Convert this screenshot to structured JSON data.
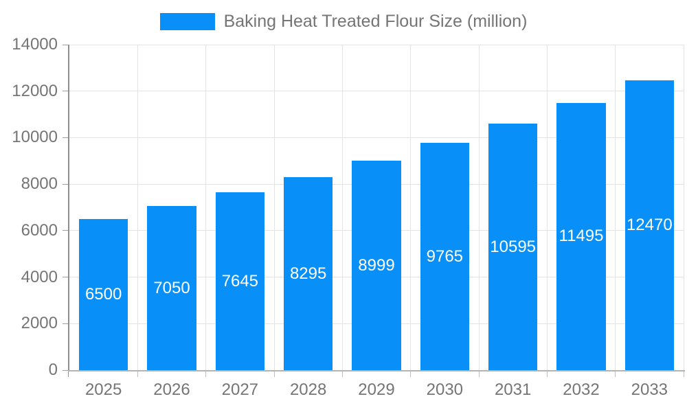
{
  "legend": {
    "items": [
      {
        "label": "Baking Heat Treated Flour Size (million)",
        "color": "#0890f8"
      }
    ],
    "position": "top"
  },
  "chart_data": {
    "type": "bar",
    "title": "Baking Heat Treated Flour Size (million)",
    "categories": [
      "2025",
      "2026",
      "2027",
      "2028",
      "2029",
      "2030",
      "2031",
      "2032",
      "2033"
    ],
    "series": [
      {
        "name": "Baking Heat Treated Flour Size (million)",
        "values": [
          6500,
          7050,
          7645,
          8295,
          8999,
          9765,
          10595,
          11495,
          12470
        ],
        "color": "#0890f8"
      }
    ],
    "bar_labels": [
      "6500",
      "7050",
      "7645",
      "8295",
      "8999",
      "9765",
      "10595",
      "11495",
      "12470"
    ],
    "xlabel": "",
    "ylabel": "",
    "ylim": [
      0,
      14000
    ],
    "yticks": [
      0,
      2000,
      4000,
      6000,
      8000,
      10000,
      12000,
      14000
    ],
    "grid": true,
    "legend_position": "top"
  },
  "colors": {
    "bar": "#0890f8",
    "bar_label": "#ffffff",
    "axis_text": "#757575",
    "legend_text": "#757575",
    "grid_line": "#e3e3e3",
    "axis_line_y": "#8f8f8f",
    "axis_line_x": "#b3b3b3",
    "tick_y": "#9e9e9e",
    "tick_x": "#bdbdbd",
    "background": "#ffffff"
  }
}
